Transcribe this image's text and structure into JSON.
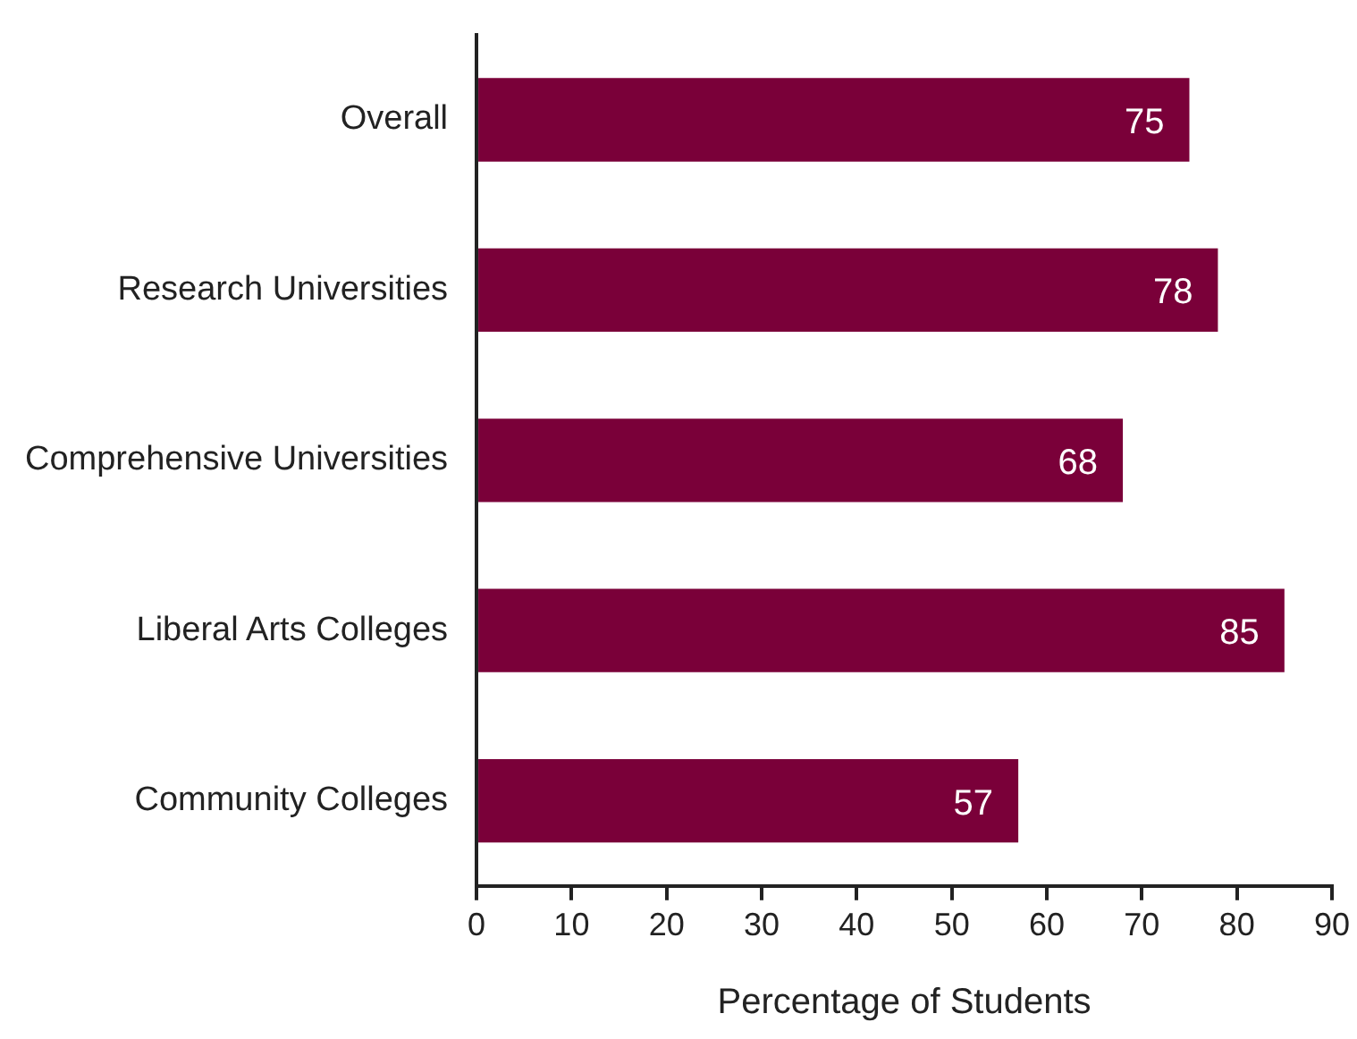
{
  "chart_data": {
    "type": "bar",
    "orientation": "horizontal",
    "categories": [
      "Overall",
      "Research Universities",
      "Comprehensive Universities",
      "Liberal Arts Colleges",
      "Community Colleges"
    ],
    "values": [
      75,
      78,
      68,
      85,
      57
    ],
    "color": "#7a0039",
    "xlabel": "Percentage of Students",
    "xlim": [
      0,
      90
    ],
    "xticks": [
      0,
      10,
      20,
      30,
      40,
      50,
      60,
      70,
      80,
      90
    ],
    "grid": false,
    "legend": false,
    "data_labels": true
  }
}
